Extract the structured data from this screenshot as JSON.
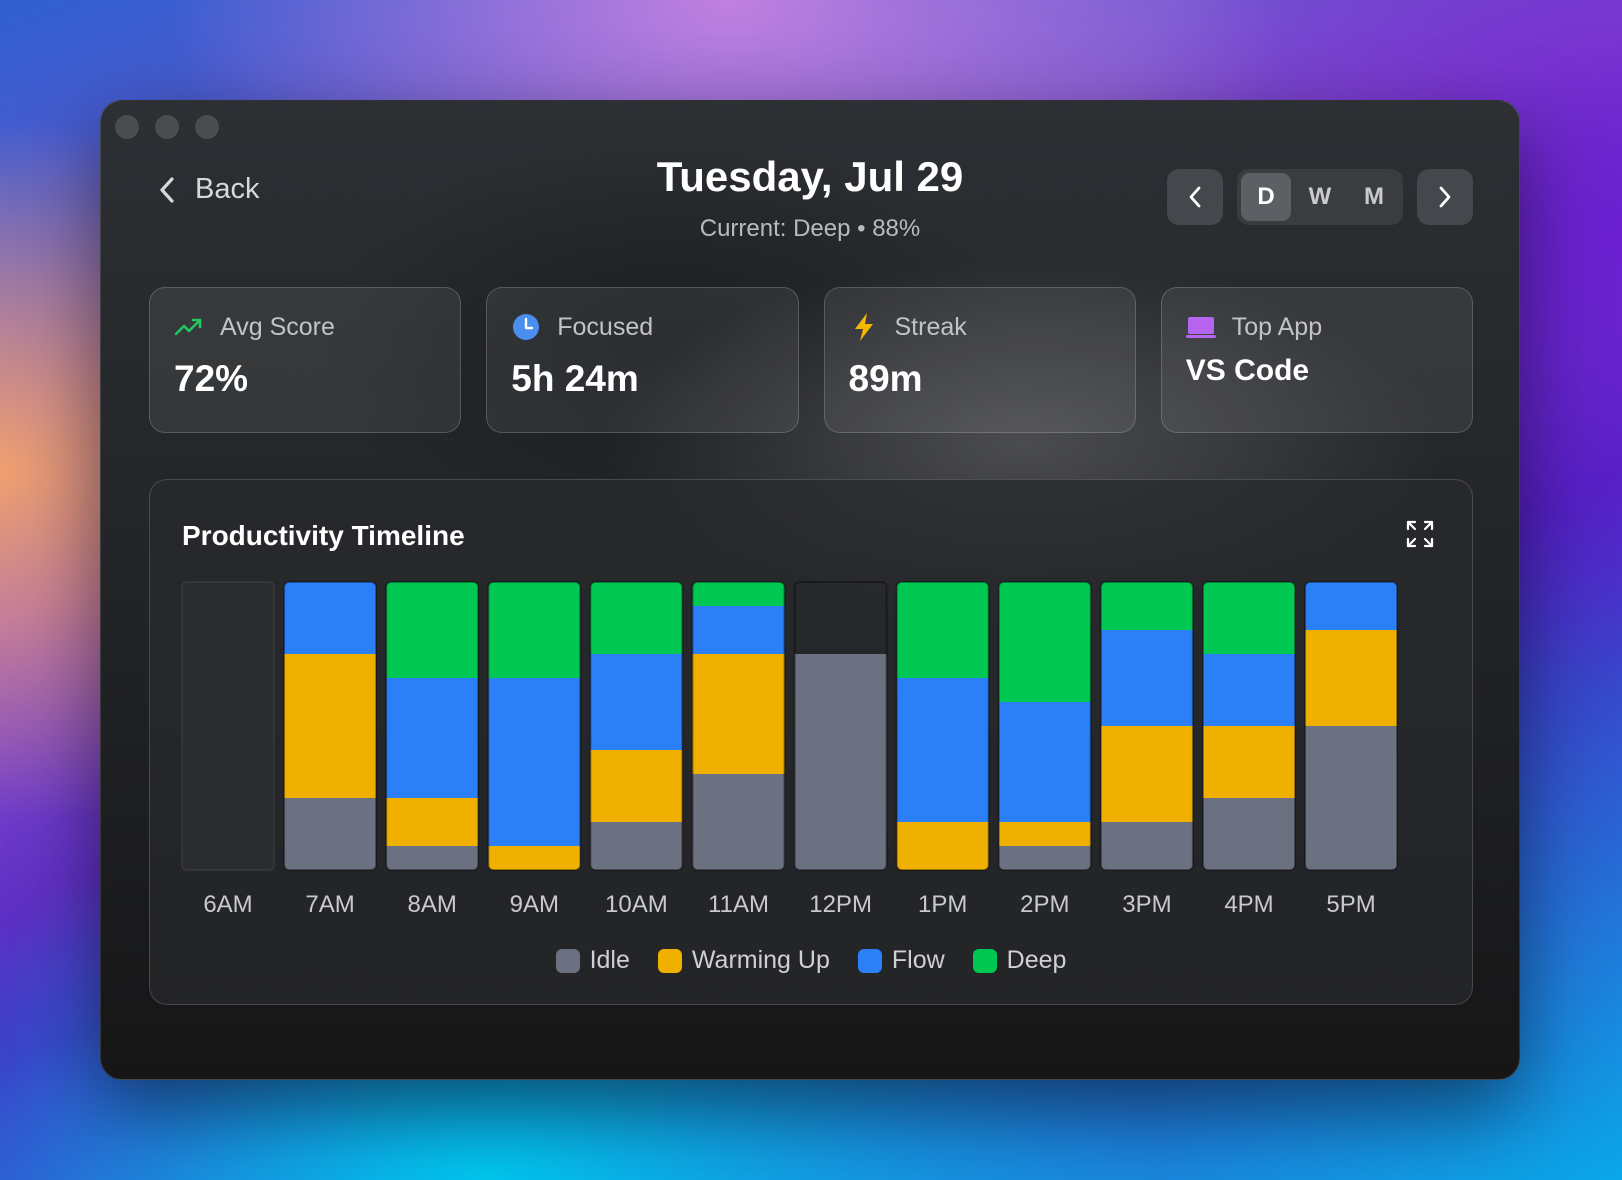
{
  "window": {
    "traffic_lights": [
      "close",
      "minimize",
      "zoom"
    ]
  },
  "header": {
    "back_label": "Back",
    "title": "Tuesday, Jul 29",
    "subtitle": "Current: Deep • 88%",
    "range_options": [
      "D",
      "W",
      "M"
    ],
    "range_selected": "D"
  },
  "cards": [
    {
      "icon": "trending-up-icon",
      "label": "Avg Score",
      "value": "72%",
      "accent": "#22c55e"
    },
    {
      "icon": "clock-icon",
      "label": "Focused",
      "value": "5h 24m",
      "accent": "#4a8ff0"
    },
    {
      "icon": "lightning-icon",
      "label": "Streak",
      "value": "89m",
      "accent": "#f5b800"
    },
    {
      "icon": "laptop-icon",
      "label": "Top App",
      "value": "VS Code",
      "accent": "#b565f0"
    }
  ],
  "chart": {
    "title": "Productivity Timeline"
  },
  "chart_data": {
    "type": "bar",
    "stacked": true,
    "categories": [
      "6AM",
      "7AM",
      "8AM",
      "9AM",
      "10AM",
      "11AM",
      "12PM",
      "1PM",
      "2PM",
      "3PM",
      "4PM",
      "5PM"
    ],
    "series": [
      {
        "name": "Idle",
        "color": "#6b7180",
        "values": [
          0,
          15,
          5,
          0,
          10,
          20,
          45,
          0,
          5,
          10,
          15,
          30
        ]
      },
      {
        "name": "Warming Up",
        "color": "#f0b000",
        "values": [
          0,
          30,
          10,
          5,
          15,
          25,
          0,
          10,
          5,
          20,
          15,
          20
        ]
      },
      {
        "name": "Flow",
        "color": "#2b7ff7",
        "values": [
          0,
          15,
          25,
          35,
          20,
          10,
          0,
          30,
          25,
          20,
          15,
          10
        ]
      },
      {
        "name": "Deep",
        "color": "#00c853",
        "values": [
          0,
          0,
          20,
          20,
          15,
          5,
          0,
          20,
          25,
          10,
          15,
          0
        ]
      }
    ],
    "empty_bar_color": "#2a2b2d",
    "ylim": [
      0,
      60
    ],
    "legend_position": "bottom-center"
  }
}
